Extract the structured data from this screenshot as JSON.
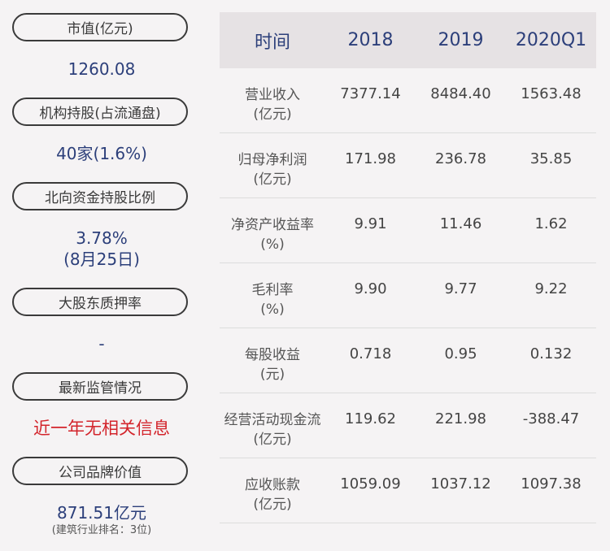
{
  "left_panel": {
    "market_cap": {
      "label": "市值(亿元)",
      "value": "1260.08"
    },
    "institutional": {
      "label": "机构持股(占流通盘)",
      "value": "40家(1.6%)"
    },
    "northbound": {
      "label": "北向资金持股比例",
      "value": "3.78%",
      "date": "(8月25日)"
    },
    "pledge": {
      "label": "大股东质押率",
      "value": "-"
    },
    "regulation": {
      "label": "最新监管情况",
      "value": "近一年无相关信息"
    },
    "brand": {
      "label": "公司品牌价值",
      "value": "871.51亿元",
      "note": "(建筑行业排名：3位)"
    }
  },
  "table": {
    "headers": [
      "时间",
      "2018",
      "2019",
      "2020Q1"
    ],
    "rows": [
      {
        "label": "营业收入",
        "unit": "(亿元)",
        "values": [
          "7377.14",
          "8484.40",
          "1563.48"
        ]
      },
      {
        "label": "归母净利润",
        "unit": "(亿元)",
        "values": [
          "171.98",
          "236.78",
          "35.85"
        ]
      },
      {
        "label": "净资产收益率",
        "unit": "(%)",
        "values": [
          "9.91",
          "11.46",
          "1.62"
        ]
      },
      {
        "label": "毛利率",
        "unit": "(%)",
        "values": [
          "9.90",
          "9.77",
          "9.22"
        ]
      },
      {
        "label": "每股收益",
        "unit": "(元)",
        "values": [
          "0.718",
          "0.95",
          "0.132"
        ]
      },
      {
        "label": "经营活动现金流",
        "unit": "(亿元)",
        "values": [
          "119.62",
          "221.98",
          "-388.47"
        ]
      },
      {
        "label": "应收账款",
        "unit": "(亿元)",
        "values": [
          "1059.09",
          "1037.12",
          "1097.38"
        ]
      }
    ]
  }
}
